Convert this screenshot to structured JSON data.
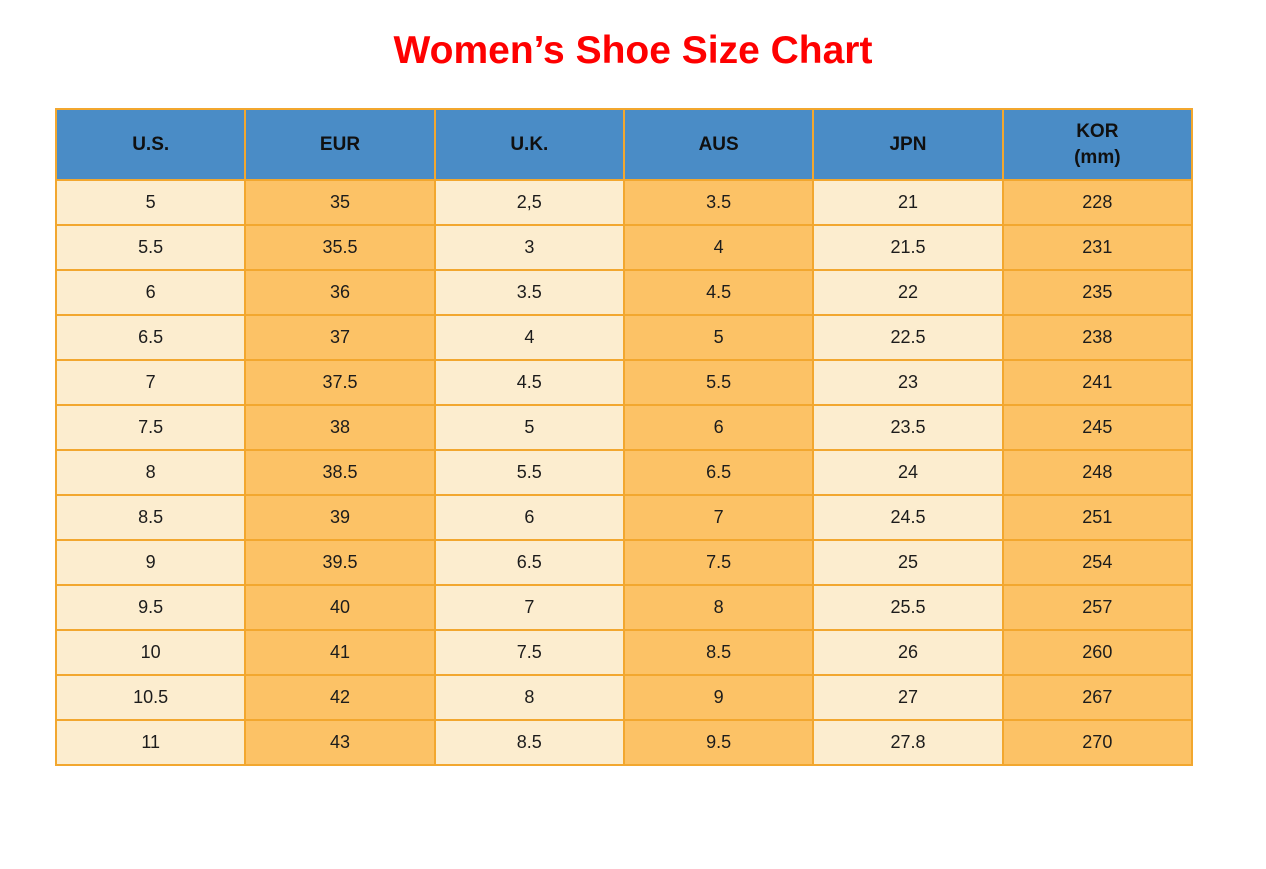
{
  "title": "Women’s Shoe Size Chart",
  "colors": {
    "title_red": "#FE0000",
    "header_blue": "#4A8CC6",
    "col_light": "#FCEDCF",
    "col_dark": "#FCC266",
    "border_orange": "#F2A72F",
    "text_dark": "#1C1C1C"
  },
  "table": {
    "headers": [
      {
        "top": "U.S.",
        "bottom": ""
      },
      {
        "top": "EUR",
        "bottom": ""
      },
      {
        "top": "U.K.",
        "bottom": ""
      },
      {
        "top": "AUS",
        "bottom": ""
      },
      {
        "top": "JPN",
        "bottom": ""
      },
      {
        "top": "KOR",
        "bottom": "(mm)"
      }
    ]
  },
  "chart_data": {
    "type": "table",
    "title": "Women’s Shoe Size Chart",
    "columns": [
      "U.S.",
      "EUR",
      "U.K.",
      "AUS",
      "JPN",
      "KOR (mm)"
    ],
    "rows": [
      [
        "5",
        "35",
        "2,5",
        "3.5",
        "21",
        "228"
      ],
      [
        "5.5",
        "35.5",
        "3",
        "4",
        "21.5",
        "231"
      ],
      [
        "6",
        "36",
        "3.5",
        "4.5",
        "22",
        "235"
      ],
      [
        "6.5",
        "37",
        "4",
        "5",
        "22.5",
        "238"
      ],
      [
        "7",
        "37.5",
        "4.5",
        "5.5",
        "23",
        "241"
      ],
      [
        "7.5",
        "38",
        "5",
        "6",
        "23.5",
        "245"
      ],
      [
        "8",
        "38.5",
        "5.5",
        "6.5",
        "24",
        "248"
      ],
      [
        "8.5",
        "39",
        "6",
        "7",
        "24.5",
        "251"
      ],
      [
        "9",
        "39.5",
        "6.5",
        "7.5",
        "25",
        "254"
      ],
      [
        "9.5",
        "40",
        "7",
        "8",
        "25.5",
        "257"
      ],
      [
        "10",
        "41",
        "7.5",
        "8.5",
        "26",
        "260"
      ],
      [
        "10.5",
        "42",
        "8",
        "9",
        "27",
        "267"
      ],
      [
        "11",
        "43",
        "8.5",
        "9.5",
        "27.8",
        "270"
      ]
    ]
  }
}
